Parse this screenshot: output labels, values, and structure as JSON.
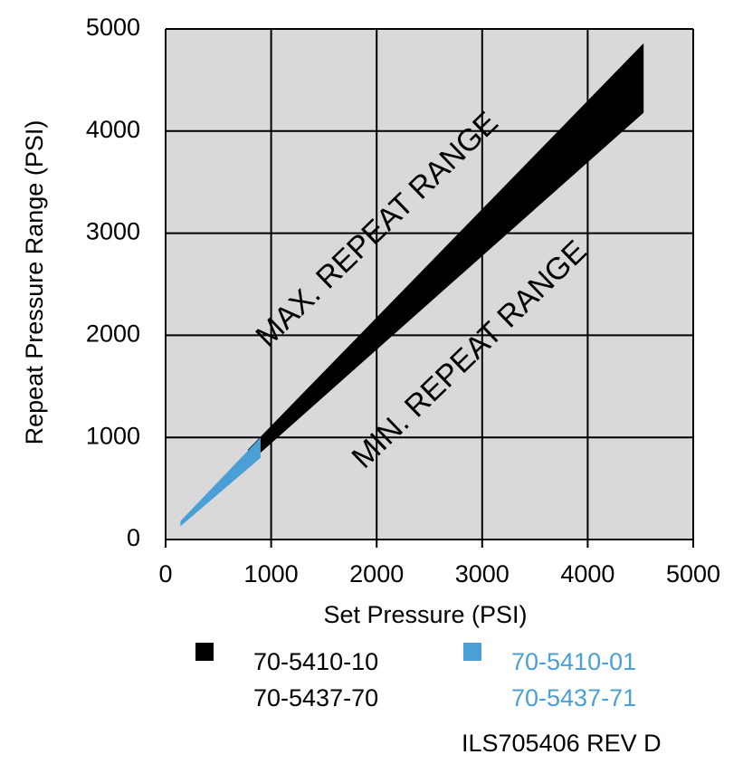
{
  "chart_data": {
    "type": "band",
    "xlabel": "Set Pressure (PSI)",
    "ylabel": "Repeat Pressure Range (PSI)",
    "xlim": [
      0,
      5000
    ],
    "ylim": [
      0,
      5000
    ],
    "xticks": [
      0,
      1000,
      2000,
      3000,
      4000,
      5000
    ],
    "yticks": [
      0,
      1000,
      2000,
      3000,
      4000,
      5000
    ],
    "grid": true,
    "series": [
      {
        "name": [
          "70-5410-10",
          "70-5437-70"
        ],
        "color": "#000000",
        "x": [
          780,
          4530
        ],
        "upper": [
          880,
          4860
        ],
        "lower": [
          740,
          4180
        ]
      },
      {
        "name": [
          "70-5410-01",
          "70-5437-71"
        ],
        "color": "#4a9fd6",
        "x": [
          140,
          900
        ],
        "upper": [
          180,
          1000
        ],
        "lower": [
          130,
          800
        ]
      }
    ],
    "annotations": [
      "MAX. REPEAT RANGE",
      "MIN. REPEAT RANGE"
    ],
    "footer": "ILS705406  REV  D"
  }
}
